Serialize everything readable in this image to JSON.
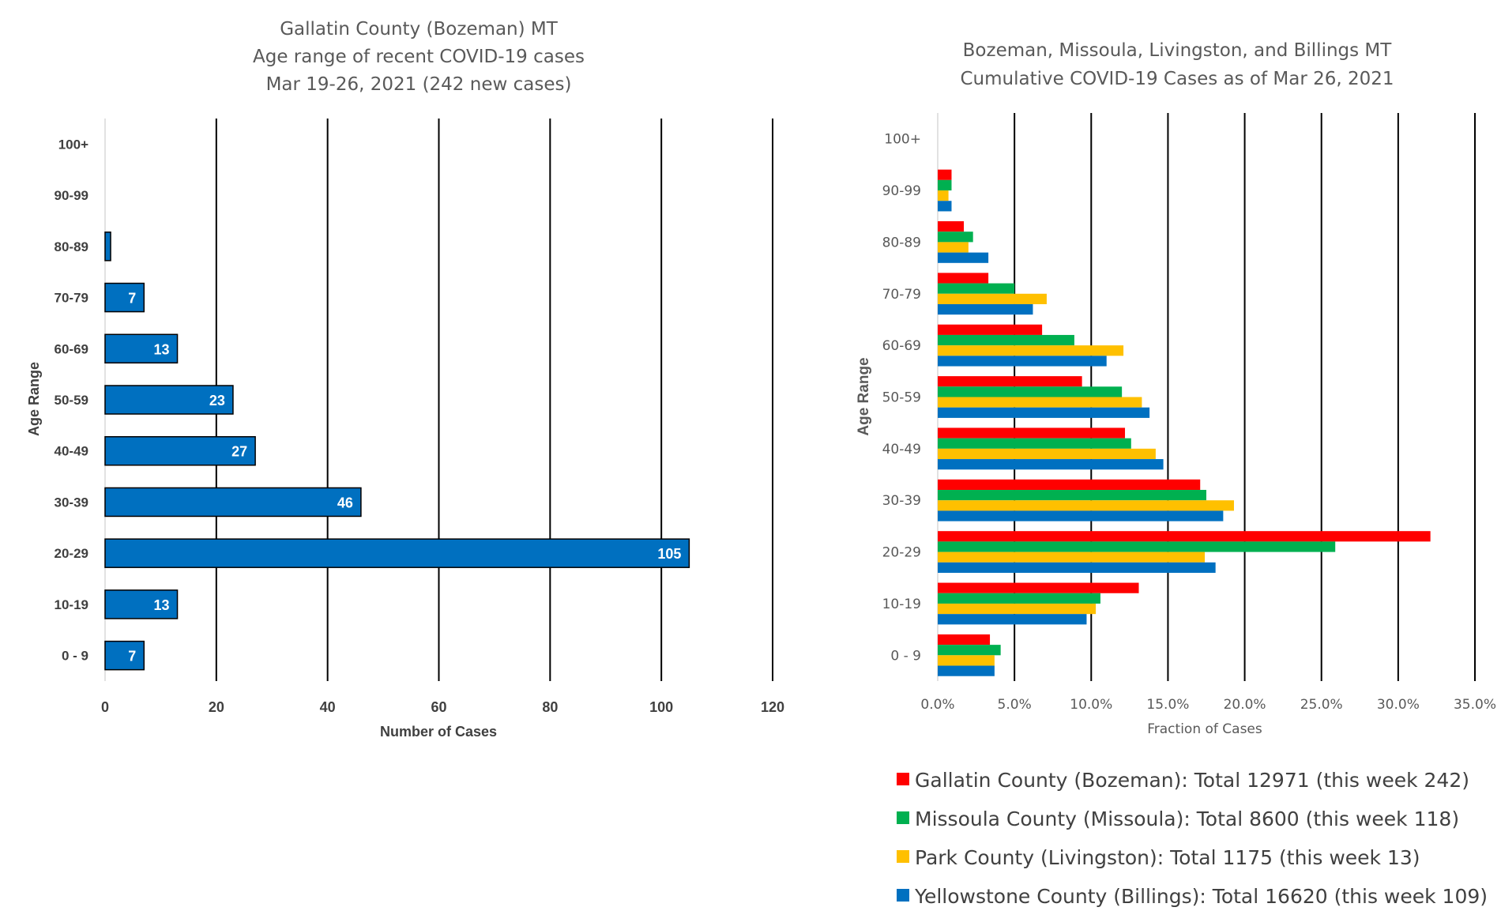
{
  "chart_data": [
    {
      "type": "bar",
      "orientation": "horizontal",
      "title_lines": [
        "Gallatin County (Bozeman) MT",
        "Age range of recent COVID-19 cases",
        "Mar 19-26, 2021 (242 new cases)"
      ],
      "xlabel": "Number of Cases",
      "ylabel": "Age Range",
      "categories": [
        "100+",
        "90-99",
        "80-89",
        "70-79",
        "60-69",
        "50-59",
        "40-49",
        "30-39",
        "20-29",
        "10-19",
        "0 - 9"
      ],
      "values": [
        0,
        0,
        1,
        7,
        13,
        23,
        27,
        46,
        105,
        13,
        7
      ],
      "data_labels": [
        "",
        "",
        "",
        "7",
        "13",
        "23",
        "27",
        "46",
        "105",
        "13",
        "7"
      ],
      "xlim": [
        0,
        120
      ],
      "xticks": [
        "0",
        "20",
        "40",
        "60",
        "80",
        "100",
        "120"
      ],
      "bar_color": "#0070C0",
      "grid": "vertical"
    },
    {
      "type": "bar",
      "orientation": "horizontal",
      "title_lines": [
        "Bozeman, Missoula, Livingston, and Billings MT",
        "Cumulative COVID-19 Cases as of Mar 26, 2021"
      ],
      "xlabel": "Fraction of Cases",
      "ylabel": "Age Range",
      "categories": [
        "100+",
        "90-99",
        "80-89",
        "70-79",
        "60-69",
        "50-59",
        "40-49",
        "30-39",
        "20-29",
        "10-19",
        "0 - 9"
      ],
      "xlim": [
        0,
        35
      ],
      "xticks": [
        "0.0%",
        "5.0%",
        "10.0%",
        "15.0%",
        "20.0%",
        "25.0%",
        "30.0%",
        "35.0%"
      ],
      "legend_position": "bottom",
      "grid": "vertical",
      "series": [
        {
          "name": "Gallatin County (Bozeman): Total 12971 (this week 242)",
          "color": "#FF0000",
          "values": [
            0,
            0.9,
            1.7,
            3.3,
            6.8,
            9.4,
            12.2,
            17.1,
            32.1,
            13.1,
            3.4
          ]
        },
        {
          "name": "Missoula County (Missoula): Total 8600 (this week 118)",
          "color": "#00B050",
          "values": [
            0,
            0.9,
            2.3,
            5.0,
            8.9,
            12.0,
            12.6,
            17.5,
            25.9,
            10.6,
            4.1
          ]
        },
        {
          "name": "Park County (Livingston): Total 1175 (this week 13)",
          "color": "#FFC000",
          "values": [
            0,
            0.7,
            2.0,
            7.1,
            12.1,
            13.3,
            14.2,
            19.3,
            17.4,
            10.3,
            3.7
          ]
        },
        {
          "name": "Yellowstone County (Billings): Total 16620 (this week 109)",
          "color": "#0070C0",
          "values": [
            0,
            0.9,
            3.3,
            6.2,
            11.0,
            13.8,
            14.7,
            18.6,
            18.1,
            9.7,
            3.7
          ]
        }
      ]
    }
  ]
}
